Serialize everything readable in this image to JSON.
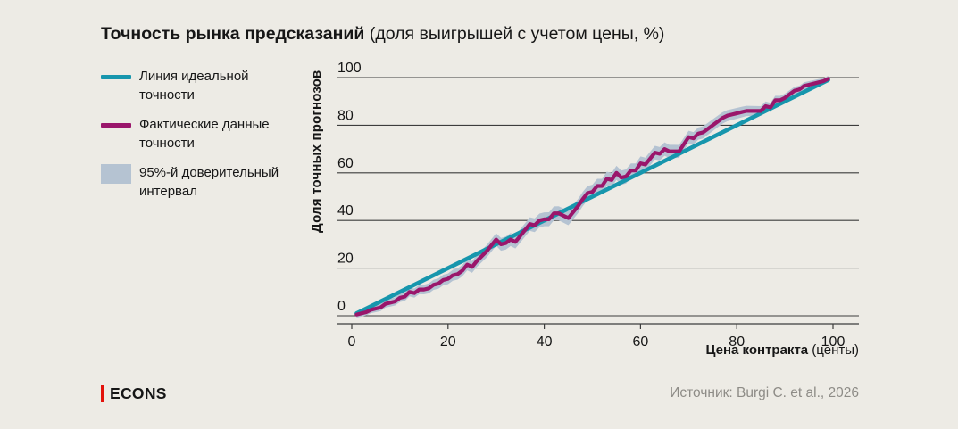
{
  "title": {
    "bold": "Точность рынка предсказаний",
    "normal": " (доля выигрышей с учетом цены, %)"
  },
  "legend": {
    "position": "left",
    "items": [
      {
        "label": "Линия идеальной точности",
        "swatch": "line",
        "color": "#1796AD"
      },
      {
        "label": "Фактические данные точности",
        "swatch": "line",
        "color": "#9A166B"
      },
      {
        "label": "95%-й доверительный интервал",
        "swatch": "band",
        "color": "#B5C3D2"
      }
    ]
  },
  "axes": {
    "y_title": "Доля точных прогнозов",
    "x_title_bold": "Цена контракта",
    "x_title_normal": " (центы)"
  },
  "footer": {
    "logo": "ECONS",
    "logo_accent_color": "#E3120B",
    "source": "Источник: Burgi C. et al., 2026"
  },
  "chart_data": {
    "type": "line",
    "title": "Точность рынка предсказаний (доля выигрышей с учетом цены, %)",
    "xlabel": "Цена контракта (центы)",
    "ylabel": "Доля точных прогнозов",
    "xlim": [
      0,
      100
    ],
    "ylim": [
      0,
      100
    ],
    "xticks": [
      0,
      20,
      40,
      60,
      80,
      100
    ],
    "yticks": [
      0,
      20,
      40,
      60,
      80,
      100
    ],
    "grid": "horizontal",
    "legend_position": "left",
    "background_color": "#EDEBE5",
    "grid_color": "#3D3D3D",
    "series": [
      {
        "name": "Линия идеальной точности",
        "type": "line",
        "color": "#1796AD",
        "x": [
          1,
          99
        ],
        "y": [
          1,
          99
        ]
      },
      {
        "name": "Фактические данные точности",
        "type": "line",
        "color": "#9A166B",
        "x_start": 1,
        "x_step": 1,
        "y": [
          0.5,
          1,
          1.5,
          2.5,
          3,
          3.5,
          5,
          5.5,
          6,
          7.5,
          8,
          10,
          9.5,
          11,
          11,
          11.5,
          13,
          13.5,
          15,
          15.5,
          17,
          17.5,
          19,
          21.5,
          20.5,
          23,
          25,
          27,
          29.5,
          32,
          30,
          30.5,
          32,
          31,
          33.5,
          36,
          38.5,
          38,
          40,
          40.5,
          40.5,
          43,
          43,
          42,
          41,
          43.5,
          46,
          49,
          51.5,
          52,
          54.5,
          54.5,
          57.5,
          57,
          60,
          58,
          58.5,
          61,
          61,
          64,
          63.5,
          66,
          68.5,
          68,
          70,
          69,
          69,
          69,
          72,
          75,
          74.5,
          76.5,
          77,
          78.5,
          80,
          81.5,
          83,
          84,
          84.5,
          85,
          85.5,
          86,
          86,
          86,
          86,
          88,
          87.5,
          90.5,
          90.5,
          91.5,
          93,
          94.5,
          95,
          96.5,
          97,
          97.5,
          98,
          98.5,
          99.5
        ]
      },
      {
        "name": "95%-й доверительный интервал",
        "type": "band",
        "color": "#B5C3D2",
        "around": "Фактические данные точности",
        "halfwidth": {
          "min": 1.2,
          "max": 3.0,
          "profile": "sinusoidal"
        }
      }
    ]
  }
}
